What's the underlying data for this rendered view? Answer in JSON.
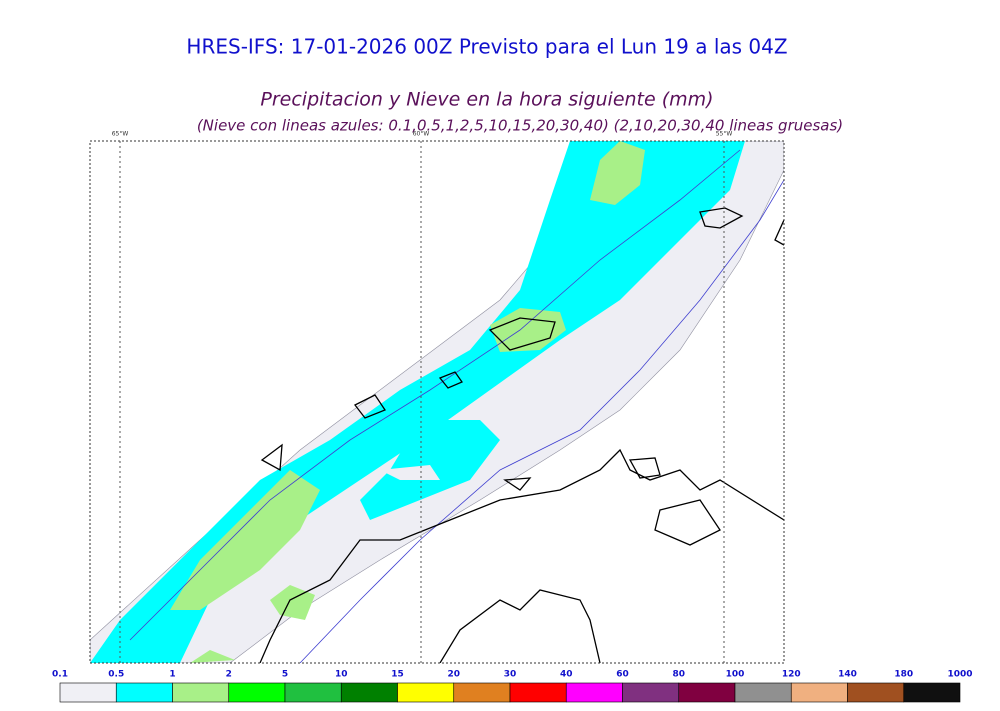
{
  "header": {
    "title": "HRES-IFS: 17-01-2026 00Z Previsto para el Lun 19 a las 04Z",
    "subtitle": "Precipitacion y Nieve en la hora siguiente (mm)",
    "note": "(Nieve con lineas azules: 0.1,0.5,1,2,5,10,15,20,30,40)  (2,10,20,30,40 lineas gruesas)"
  },
  "map": {
    "meridians": [
      "65°W",
      "60°W",
      "55°W"
    ]
  },
  "legend": {
    "labels": [
      "0.1",
      "0.5",
      "1",
      "2",
      "5",
      "10",
      "15",
      "20",
      "30",
      "40",
      "60",
      "80",
      "100",
      "120",
      "140",
      "180",
      "1000"
    ],
    "colors": [
      "#f0f0f5",
      "#00ffff",
      "#a8f088",
      "#00ff00",
      "#20c040",
      "#008000",
      "#ffff00",
      "#e08020",
      "#ff0000",
      "#ff00ff",
      "#803080",
      "#800040",
      "#909090",
      "#f0b080",
      "#a05020",
      "#101010"
    ]
  }
}
